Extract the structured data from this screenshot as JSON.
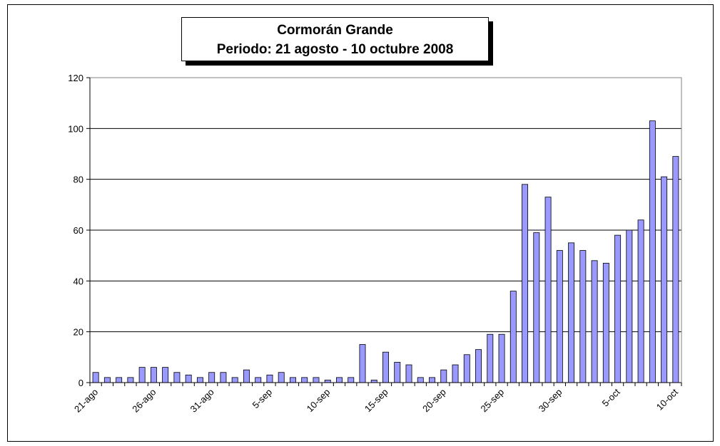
{
  "chart_data": {
    "type": "bar",
    "title": "Cormorán Grande",
    "subtitle": "Periodo: 21 agosto - 10 octubre 2008",
    "xlabel": "",
    "ylabel": "",
    "ylim": [
      0,
      120
    ],
    "yticks": [
      "0",
      "20",
      "40",
      "60",
      "80",
      "100",
      "120"
    ],
    "grid": true,
    "legend": "none",
    "bar_color": "#9999ff",
    "categories": [
      "21-ago",
      "22-ago",
      "23-ago",
      "24-ago",
      "25-ago",
      "26-ago",
      "27-ago",
      "28-ago",
      "29-ago",
      "30-ago",
      "31-ago",
      "1-sep",
      "2-sep",
      "3-sep",
      "4-sep",
      "5-sep",
      "6-sep",
      "7-sep",
      "8-sep",
      "9-sep",
      "10-sep",
      "11-sep",
      "12-sep",
      "13-sep",
      "14-sep",
      "15-sep",
      "16-sep",
      "17-sep",
      "18-sep",
      "19-sep",
      "20-sep",
      "21-sep",
      "22-sep",
      "23-sep",
      "24-sep",
      "25-sep",
      "26-sep",
      "27-sep",
      "28-sep",
      "29-sep",
      "30-sep",
      "1-oct",
      "2-oct",
      "3-oct",
      "4-oct",
      "5-oct",
      "6-oct",
      "7-oct",
      "8-oct",
      "9-oct",
      "10-oct"
    ],
    "xtick_labels": [
      "21-ago",
      "",
      "",
      "",
      "",
      "26-ago",
      "",
      "",
      "",
      "",
      "31-ago",
      "",
      "",
      "",
      "",
      "5-sep",
      "",
      "",
      "",
      "",
      "10-sep",
      "",
      "",
      "",
      "",
      "15-sep",
      "",
      "",
      "",
      "",
      "20-sep",
      "",
      "",
      "",
      "",
      "25-sep",
      "",
      "",
      "",
      "",
      "30-sep",
      "",
      "",
      "",
      "",
      "5-oct",
      "",
      "",
      "",
      "",
      "10-oct"
    ],
    "values": [
      4,
      2,
      2,
      2,
      6,
      6,
      6,
      4,
      3,
      2,
      4,
      4,
      2,
      5,
      2,
      3,
      4,
      2,
      2,
      2,
      1,
      2,
      2,
      15,
      1,
      12,
      8,
      7,
      2,
      2,
      5,
      7,
      11,
      13,
      19,
      19,
      36,
      78,
      59,
      73,
      52,
      55,
      52,
      48,
      47,
      58,
      60,
      64,
      103,
      81,
      89
    ]
  }
}
